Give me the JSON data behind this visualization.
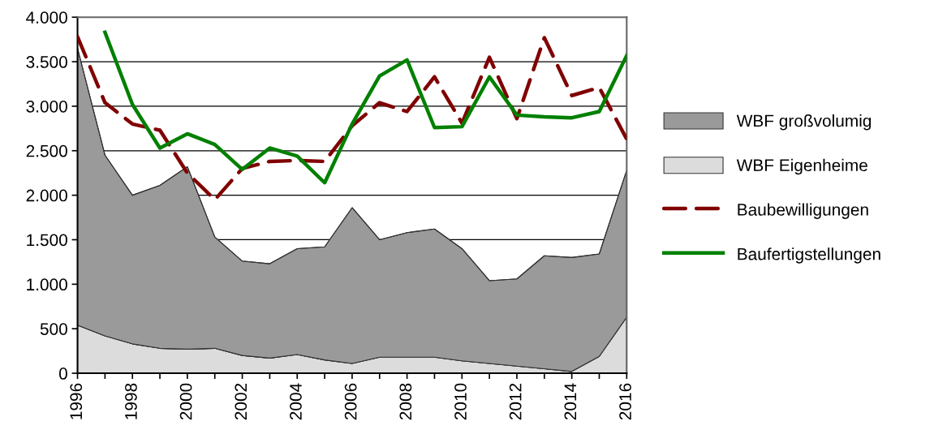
{
  "chart_data": {
    "type": "area",
    "stacked": true,
    "x": [
      1996,
      1997,
      1998,
      1999,
      2000,
      2001,
      2002,
      2003,
      2004,
      2005,
      2006,
      2007,
      2008,
      2009,
      2010,
      2011,
      2012,
      2013,
      2014,
      2015,
      2016
    ],
    "series": [
      {
        "name": "WBF Eigenheime",
        "color": "#dcdcdc",
        "values": [
          540,
          420,
          330,
          280,
          270,
          280,
          200,
          170,
          210,
          150,
          110,
          180,
          180,
          180,
          140,
          110,
          80,
          50,
          20,
          190,
          630
        ]
      },
      {
        "name": "WBF großvolumig",
        "color": "#9a9a9a",
        "values": [
          3110,
          2030,
          1670,
          1830,
          2050,
          1250,
          1060,
          1060,
          1190,
          1270,
          1750,
          1320,
          1400,
          1440,
          1260,
          930,
          980,
          1270,
          1280,
          1150,
          1650
        ]
      },
      {
        "name": "Baubewilligungen",
        "type": "line",
        "color": "#800000",
        "line_style": "dashed",
        "values": [
          3780,
          3040,
          2800,
          2730,
          2250,
          1950,
          2300,
          2380,
          2390,
          2380,
          2780,
          3040,
          2940,
          3330,
          2810,
          3550,
          2860,
          3770,
          3120,
          3210,
          2630
        ]
      },
      {
        "name": "Baufertigstellungen",
        "type": "line",
        "color": "#008000",
        "line_style": "solid",
        "values": [
          null,
          3830,
          3020,
          2530,
          2690,
          2570,
          2290,
          2530,
          2440,
          2140,
          2800,
          3340,
          3520,
          2760,
          2770,
          3330,
          2900,
          2880,
          2870,
          2940,
          3570
        ]
      }
    ],
    "xlim": [
      1996,
      2016
    ],
    "xticks": [
      1996,
      {
        "value": 1997,
        "label": null
      },
      1998,
      {
        "value": 1999,
        "label": null
      },
      2000,
      {
        "value": 2001,
        "label": null
      },
      2002,
      {
        "value": 2003,
        "label": null
      },
      2004,
      {
        "value": 2005,
        "label": null
      },
      2006,
      {
        "value": 2007,
        "label": null
      },
      2008,
      {
        "value": 2009,
        "label": null
      },
      2010,
      {
        "value": 2011,
        "label": null
      },
      2012,
      {
        "value": 2013,
        "label": null
      },
      2014,
      {
        "value": 2015,
        "label": null
      },
      2016
    ],
    "ylim": [
      0,
      4000
    ],
    "yticks": [
      {
        "value": 0,
        "label": "0"
      },
      {
        "value": 500,
        "label": "500"
      },
      {
        "value": 1000,
        "label": "1.000"
      },
      {
        "value": 1500,
        "label": "1.500"
      },
      {
        "value": 2000,
        "label": "2.000"
      },
      {
        "value": 2500,
        "label": "2.500"
      },
      {
        "value": 3000,
        "label": "3.000"
      },
      {
        "value": 3500,
        "label": "3.500"
      },
      {
        "value": 4000,
        "label": "4.000"
      }
    ],
    "grid": "y",
    "legend": "right"
  }
}
